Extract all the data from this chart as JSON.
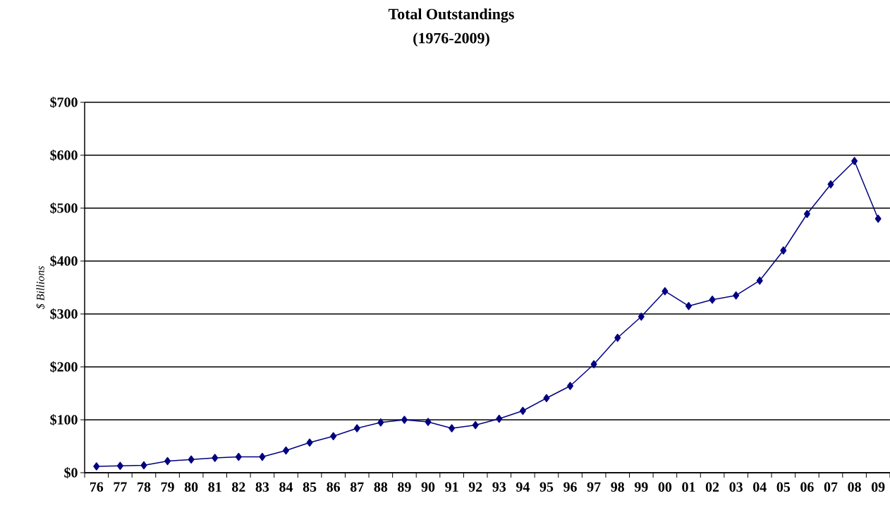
{
  "chart_data": {
    "type": "line",
    "title": "Total Outstandings",
    "subtitle": "(1976-2009)",
    "ylabel": "$ Billions",
    "categories": [
      "76",
      "77",
      "78",
      "79",
      "80",
      "81",
      "82",
      "83",
      "84",
      "85",
      "86",
      "87",
      "88",
      "89",
      "90",
      "91",
      "92",
      "93",
      "94",
      "95",
      "96",
      "97",
      "98",
      "99",
      "00",
      "01",
      "02",
      "03",
      "04",
      "05",
      "06",
      "07",
      "08",
      "09"
    ],
    "series": [
      {
        "color": "#000080",
        "values": [
          12,
          13,
          14,
          22,
          25,
          28,
          30,
          30,
          42,
          57,
          69,
          84,
          95,
          100,
          96,
          84,
          90,
          102,
          117,
          141,
          164,
          205,
          255,
          295,
          343,
          315,
          327,
          335,
          363,
          420,
          489,
          545,
          589,
          480
        ]
      }
    ],
    "ylim": [
      0,
      700
    ],
    "yticks": [
      {
        "value": 0,
        "label": "$0"
      },
      {
        "value": 100,
        "label": "$100"
      },
      {
        "value": 200,
        "label": "$200"
      },
      {
        "value": 300,
        "label": "$300"
      },
      {
        "value": 400,
        "label": "$400"
      },
      {
        "value": 500,
        "label": "$500"
      },
      {
        "value": 600,
        "label": "$600"
      },
      {
        "value": 700,
        "label": "$700"
      }
    ],
    "grid": "y",
    "marker": "diamond",
    "line_style": "solid"
  }
}
